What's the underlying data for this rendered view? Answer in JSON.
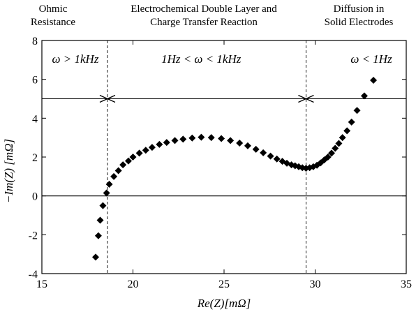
{
  "region_labels": {
    "ohmic": [
      "Ohmic",
      "Resistance"
    ],
    "edl": [
      "Electrochemical Double Layer and",
      "Charge Transfer Reaction"
    ],
    "diffusion": [
      "Diffusion in",
      "Solid Electrodes"
    ]
  },
  "chart_data": {
    "type": "scatter",
    "xlabel": "Re(Z)[mΩ]",
    "ylabel": "−Im(Z) [mΩ]",
    "xlim": [
      15,
      35
    ],
    "ylim": [
      -4,
      8
    ],
    "xticks": [
      "15",
      "20",
      "25",
      "30",
      "35"
    ],
    "yticks": [
      "-4",
      "-2",
      "0",
      "2",
      "4",
      "6",
      "8"
    ],
    "grid": false,
    "marker": "diamond",
    "marker_color": "#000000",
    "reference_lines": {
      "horizontal": [
        0,
        5
      ],
      "vertical_dashed": [
        18.6,
        29.5
      ]
    },
    "frequency_regions": [
      {
        "label": "ω > 1kHz",
        "x_from": 15,
        "x_to": 18.6
      },
      {
        "label": "1Hz < ω < 1kHz",
        "x_from": 18.6,
        "x_to": 29.5
      },
      {
        "label": "ω < 1Hz",
        "x_from": 29.5,
        "x_to": 35
      }
    ],
    "series": [
      {
        "x": [
          17.95,
          18.1,
          18.2,
          18.35,
          18.55,
          18.7,
          18.95,
          19.2,
          19.45,
          19.75,
          20.0,
          20.35,
          20.7,
          21.05,
          21.45,
          21.85,
          22.3,
          22.75,
          23.25,
          23.75,
          24.3,
          24.85,
          25.35,
          25.85,
          26.3,
          26.75,
          27.15,
          27.55,
          27.9,
          28.2,
          28.45,
          28.7,
          28.9,
          29.1,
          29.3,
          29.5,
          29.7,
          29.9,
          30.1,
          30.3,
          30.5,
          30.7,
          30.9,
          31.1,
          31.3,
          31.5,
          31.75,
          32.0,
          32.3,
          32.7,
          33.2
        ],
        "y": [
          -3.15,
          -2.05,
          -1.25,
          -0.5,
          0.15,
          0.6,
          1.0,
          1.3,
          1.6,
          1.8,
          2.0,
          2.2,
          2.35,
          2.5,
          2.65,
          2.75,
          2.85,
          2.92,
          2.98,
          3.02,
          3.0,
          2.95,
          2.85,
          2.72,
          2.58,
          2.4,
          2.22,
          2.05,
          1.9,
          1.78,
          1.68,
          1.6,
          1.55,
          1.5,
          1.45,
          1.42,
          1.45,
          1.5,
          1.58,
          1.7,
          1.85,
          2.0,
          2.2,
          2.45,
          2.7,
          3.0,
          3.35,
          3.8,
          4.4,
          5.15,
          5.95
        ]
      }
    ]
  }
}
